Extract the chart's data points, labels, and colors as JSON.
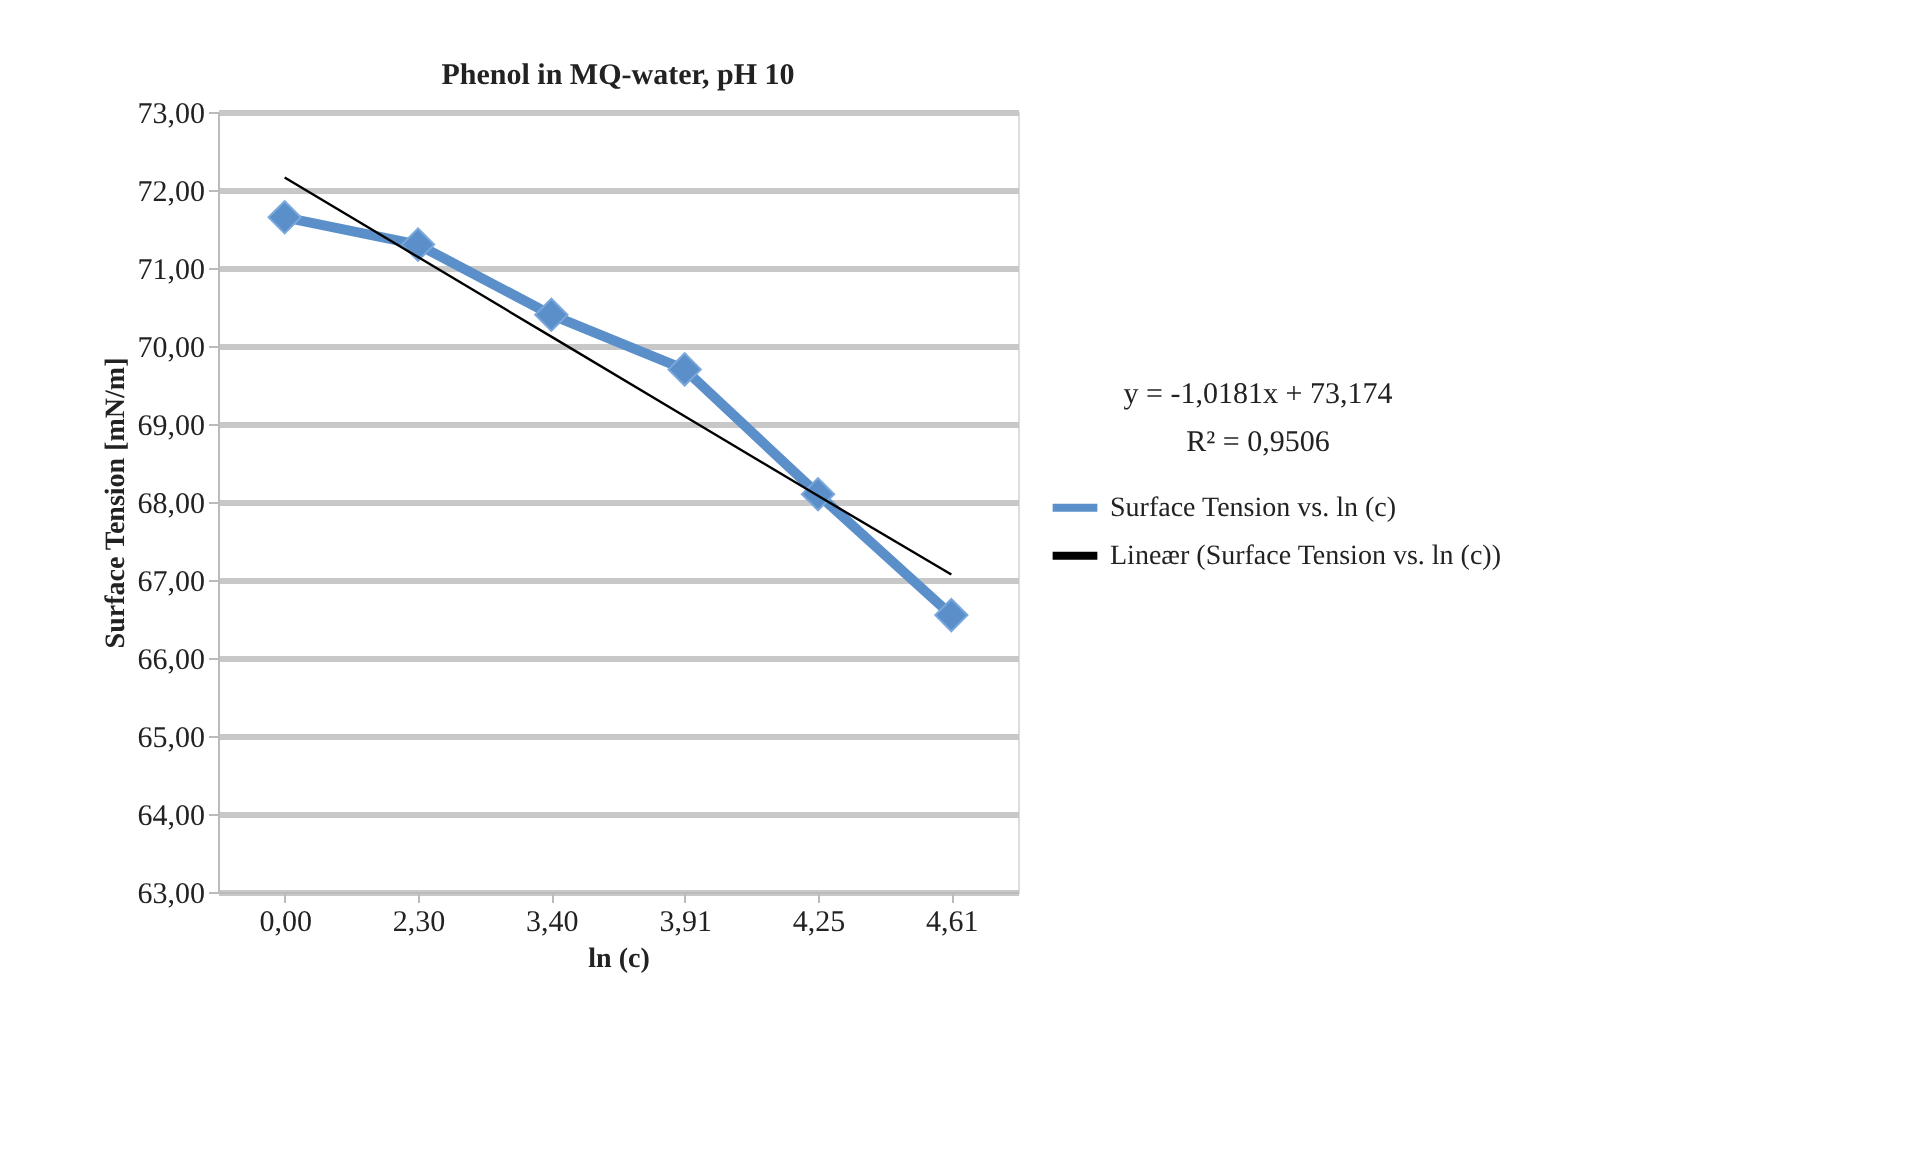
{
  "chart_data": {
    "type": "line",
    "title": "Phenol in MQ-water, pH 10",
    "xlabel": "ln (c)",
    "ylabel": "Surface Tension [mN/m]",
    "categories": [
      "0,00",
      "2,30",
      "3,40",
      "3,91",
      "4,25",
      "4,61"
    ],
    "series": [
      {
        "name": "Surface Tension vs. ln (c)",
        "color": "#5b8fc9",
        "marker": "diamond",
        "line_style": "solid",
        "values": [
          71.65,
          71.3,
          70.4,
          69.7,
          68.1,
          66.55
        ]
      },
      {
        "name": "Lineær (Surface Tension vs. ln (c))",
        "color": "#000000",
        "marker": "none",
        "line_style": "solid",
        "values": [
          72.16,
          71.14,
          70.12,
          69.1,
          68.08,
          67.07
        ]
      }
    ],
    "ylim": [
      63,
      73
    ],
    "yticks": [
      {
        "value": 63,
        "label": "63,00"
      },
      {
        "value": 64,
        "label": "64,00"
      },
      {
        "value": 65,
        "label": "65,00"
      },
      {
        "value": 66,
        "label": "66,00"
      },
      {
        "value": 67,
        "label": "67,00"
      },
      {
        "value": 68,
        "label": "68,00"
      },
      {
        "value": 69,
        "label": "69,00"
      },
      {
        "value": 70,
        "label": "70,00"
      },
      {
        "value": 71,
        "label": "71,00"
      },
      {
        "value": 72,
        "label": "72,00"
      },
      {
        "value": 73,
        "label": "73,00"
      }
    ],
    "grid": "y",
    "legend": "right",
    "annotations": [
      "y = -1,0181x + 73,174",
      "R² = 0,9506"
    ]
  }
}
